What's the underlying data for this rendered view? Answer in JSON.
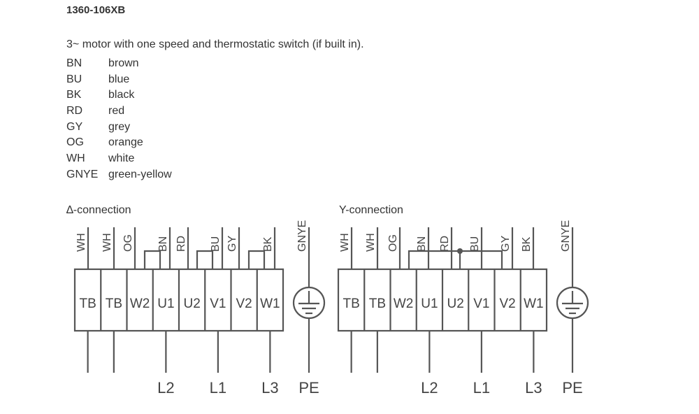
{
  "title": "1360-106XB",
  "description": "3~ motor with one speed and thermostatic switch (if built in).",
  "legend": [
    {
      "code": "BN",
      "name": "brown"
    },
    {
      "code": "BU",
      "name": "blue"
    },
    {
      "code": "BK",
      "name": "black"
    },
    {
      "code": "RD",
      "name": "red"
    },
    {
      "code": "GY",
      "name": "grey"
    },
    {
      "code": "OG",
      "name": "orange"
    },
    {
      "code": "WH",
      "name": "white"
    },
    {
      "code": "GNYE",
      "name": "green-yellow"
    }
  ],
  "delta": {
    "label": "∆-connection",
    "terminals": [
      "TB",
      "TB",
      "W2",
      "U1",
      "U2",
      "V1",
      "V2",
      "W1"
    ],
    "wires": [
      "WH",
      "WH",
      "OG",
      "BN",
      "RD",
      "BU",
      "GY",
      "BK"
    ],
    "ground_wire": "GNYE",
    "lines": [
      "L2",
      "L1",
      "L3",
      "PE"
    ]
  },
  "star": {
    "label": "Y-connection",
    "terminals": [
      "TB",
      "TB",
      "W2",
      "U1",
      "U2",
      "V1",
      "V2",
      "W1"
    ],
    "wires": [
      "WH",
      "WH",
      "OG",
      "BN",
      "RD",
      "BU",
      "GY",
      "BK"
    ],
    "ground_wire": "GNYE",
    "lines": [
      "L2",
      "L1",
      "L3",
      "PE"
    ]
  }
}
